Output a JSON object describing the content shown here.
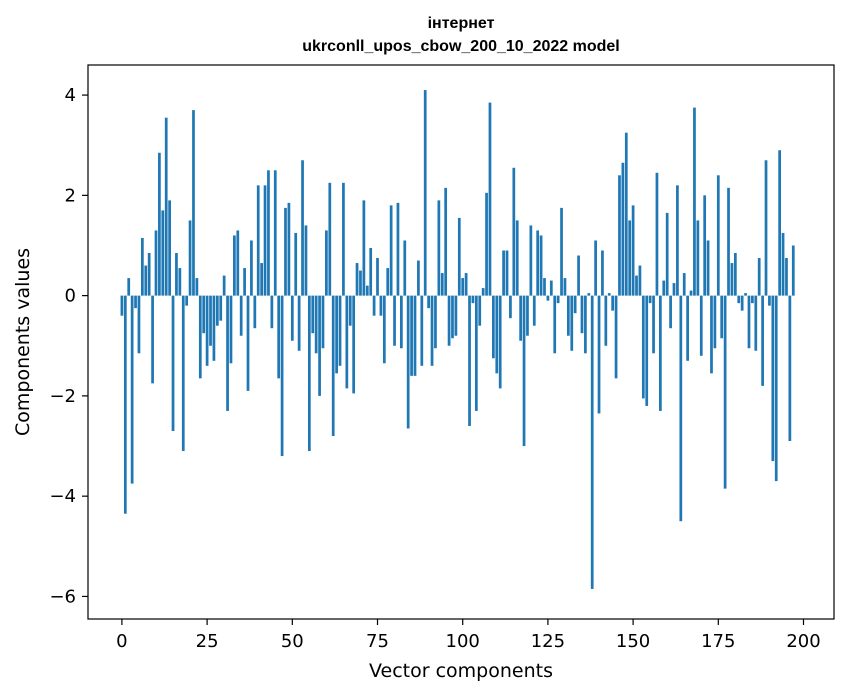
{
  "chart_data": {
    "type": "bar",
    "title": "інтернет",
    "subtitle": "ukrconll_upos_cbow_200_10_2022 model",
    "xlabel": "Vector components",
    "ylabel": "Components values",
    "xlim": [
      -9.95,
      208.95
    ],
    "ylim": [
      -6.45,
      4.6
    ],
    "xticks": [
      0,
      25,
      50,
      75,
      100,
      125,
      150,
      175,
      200
    ],
    "xtick_labels": [
      "0",
      "25",
      "50",
      "75",
      "100",
      "125",
      "150",
      "175",
      "200"
    ],
    "yticks": [
      -6,
      -4,
      -2,
      0,
      2,
      4
    ],
    "ytick_labels": [
      "−6",
      "−4",
      "−2",
      "0",
      "2",
      "4"
    ],
    "grid": false,
    "legend": "none",
    "bar_color": "#1f77b4",
    "series": [
      {
        "values": [
          -0.4,
          -4.35,
          0.35,
          -3.75,
          -0.25,
          -1.15,
          1.15,
          0.6,
          0.85,
          -1.75,
          1.3,
          2.85,
          1.7,
          3.55,
          1.9,
          -2.7,
          0.85,
          0.55,
          -3.1,
          -0.2,
          1.5,
          3.7,
          0.35,
          -1.65,
          -0.75,
          -1.4,
          -1.0,
          -1.3,
          -0.6,
          -0.5,
          0.4,
          -2.3,
          -1.35,
          1.2,
          1.3,
          -0.8,
          0.55,
          -1.9,
          1.1,
          -0.65,
          2.2,
          0.65,
          2.2,
          2.5,
          -0.65,
          2.5,
          -1.65,
          -3.2,
          1.75,
          1.85,
          -0.9,
          1.25,
          -1.1,
          2.7,
          1.4,
          -3.1,
          -0.75,
          -1.15,
          -2.0,
          -1.05,
          1.3,
          2.25,
          -2.8,
          -1.55,
          -1.4,
          2.25,
          -1.85,
          -0.6,
          -1.95,
          0.65,
          0.5,
          1.9,
          0.2,
          0.95,
          -0.4,
          0.75,
          -0.4,
          -1.35,
          0.55,
          1.8,
          -1.0,
          1.85,
          -1.05,
          1.1,
          -2.65,
          -1.6,
          -1.6,
          0.7,
          -1.4,
          4.1,
          -0.25,
          -1.4,
          -1.05,
          1.9,
          0.45,
          2.15,
          -1.0,
          -0.85,
          -0.8,
          1.55,
          0.35,
          0.45,
          -2.6,
          -0.15,
          -2.3,
          -0.6,
          0.15,
          2.05,
          3.85,
          -1.25,
          -1.55,
          -1.85,
          0.9,
          0.9,
          -0.45,
          2.55,
          1.5,
          -0.9,
          -3.0,
          -0.8,
          1.4,
          -0.6,
          1.3,
          1.2,
          0.35,
          -0.1,
          0.3,
          -1.15,
          -0.15,
          1.75,
          0.35,
          -0.8,
          -1.1,
          -0.35,
          0.8,
          -0.75,
          -1.15,
          0.05,
          -5.85,
          1.1,
          -2.35,
          0.9,
          -1.0,
          0.05,
          -0.3,
          -1.65,
          2.4,
          2.65,
          3.25,
          1.5,
          1.8,
          0.4,
          0.6,
          -2.05,
          -2.2,
          -0.15,
          -1.15,
          2.45,
          -2.3,
          0.3,
          1.65,
          -0.65,
          0.25,
          2.2,
          -4.5,
          0.45,
          -1.3,
          0.1,
          3.75,
          1.5,
          -1.2,
          2.0,
          1.1,
          -1.55,
          -1.05,
          2.4,
          -0.85,
          -3.85,
          2.15,
          0.65,
          0.85,
          -0.15,
          -0.3,
          0.05,
          -1.05,
          -0.15,
          -1.1,
          0.75,
          -1.8,
          2.7,
          -0.2,
          -3.3,
          -3.7,
          2.9,
          1.25,
          0.75,
          -2.9,
          1.0
        ]
      }
    ]
  }
}
